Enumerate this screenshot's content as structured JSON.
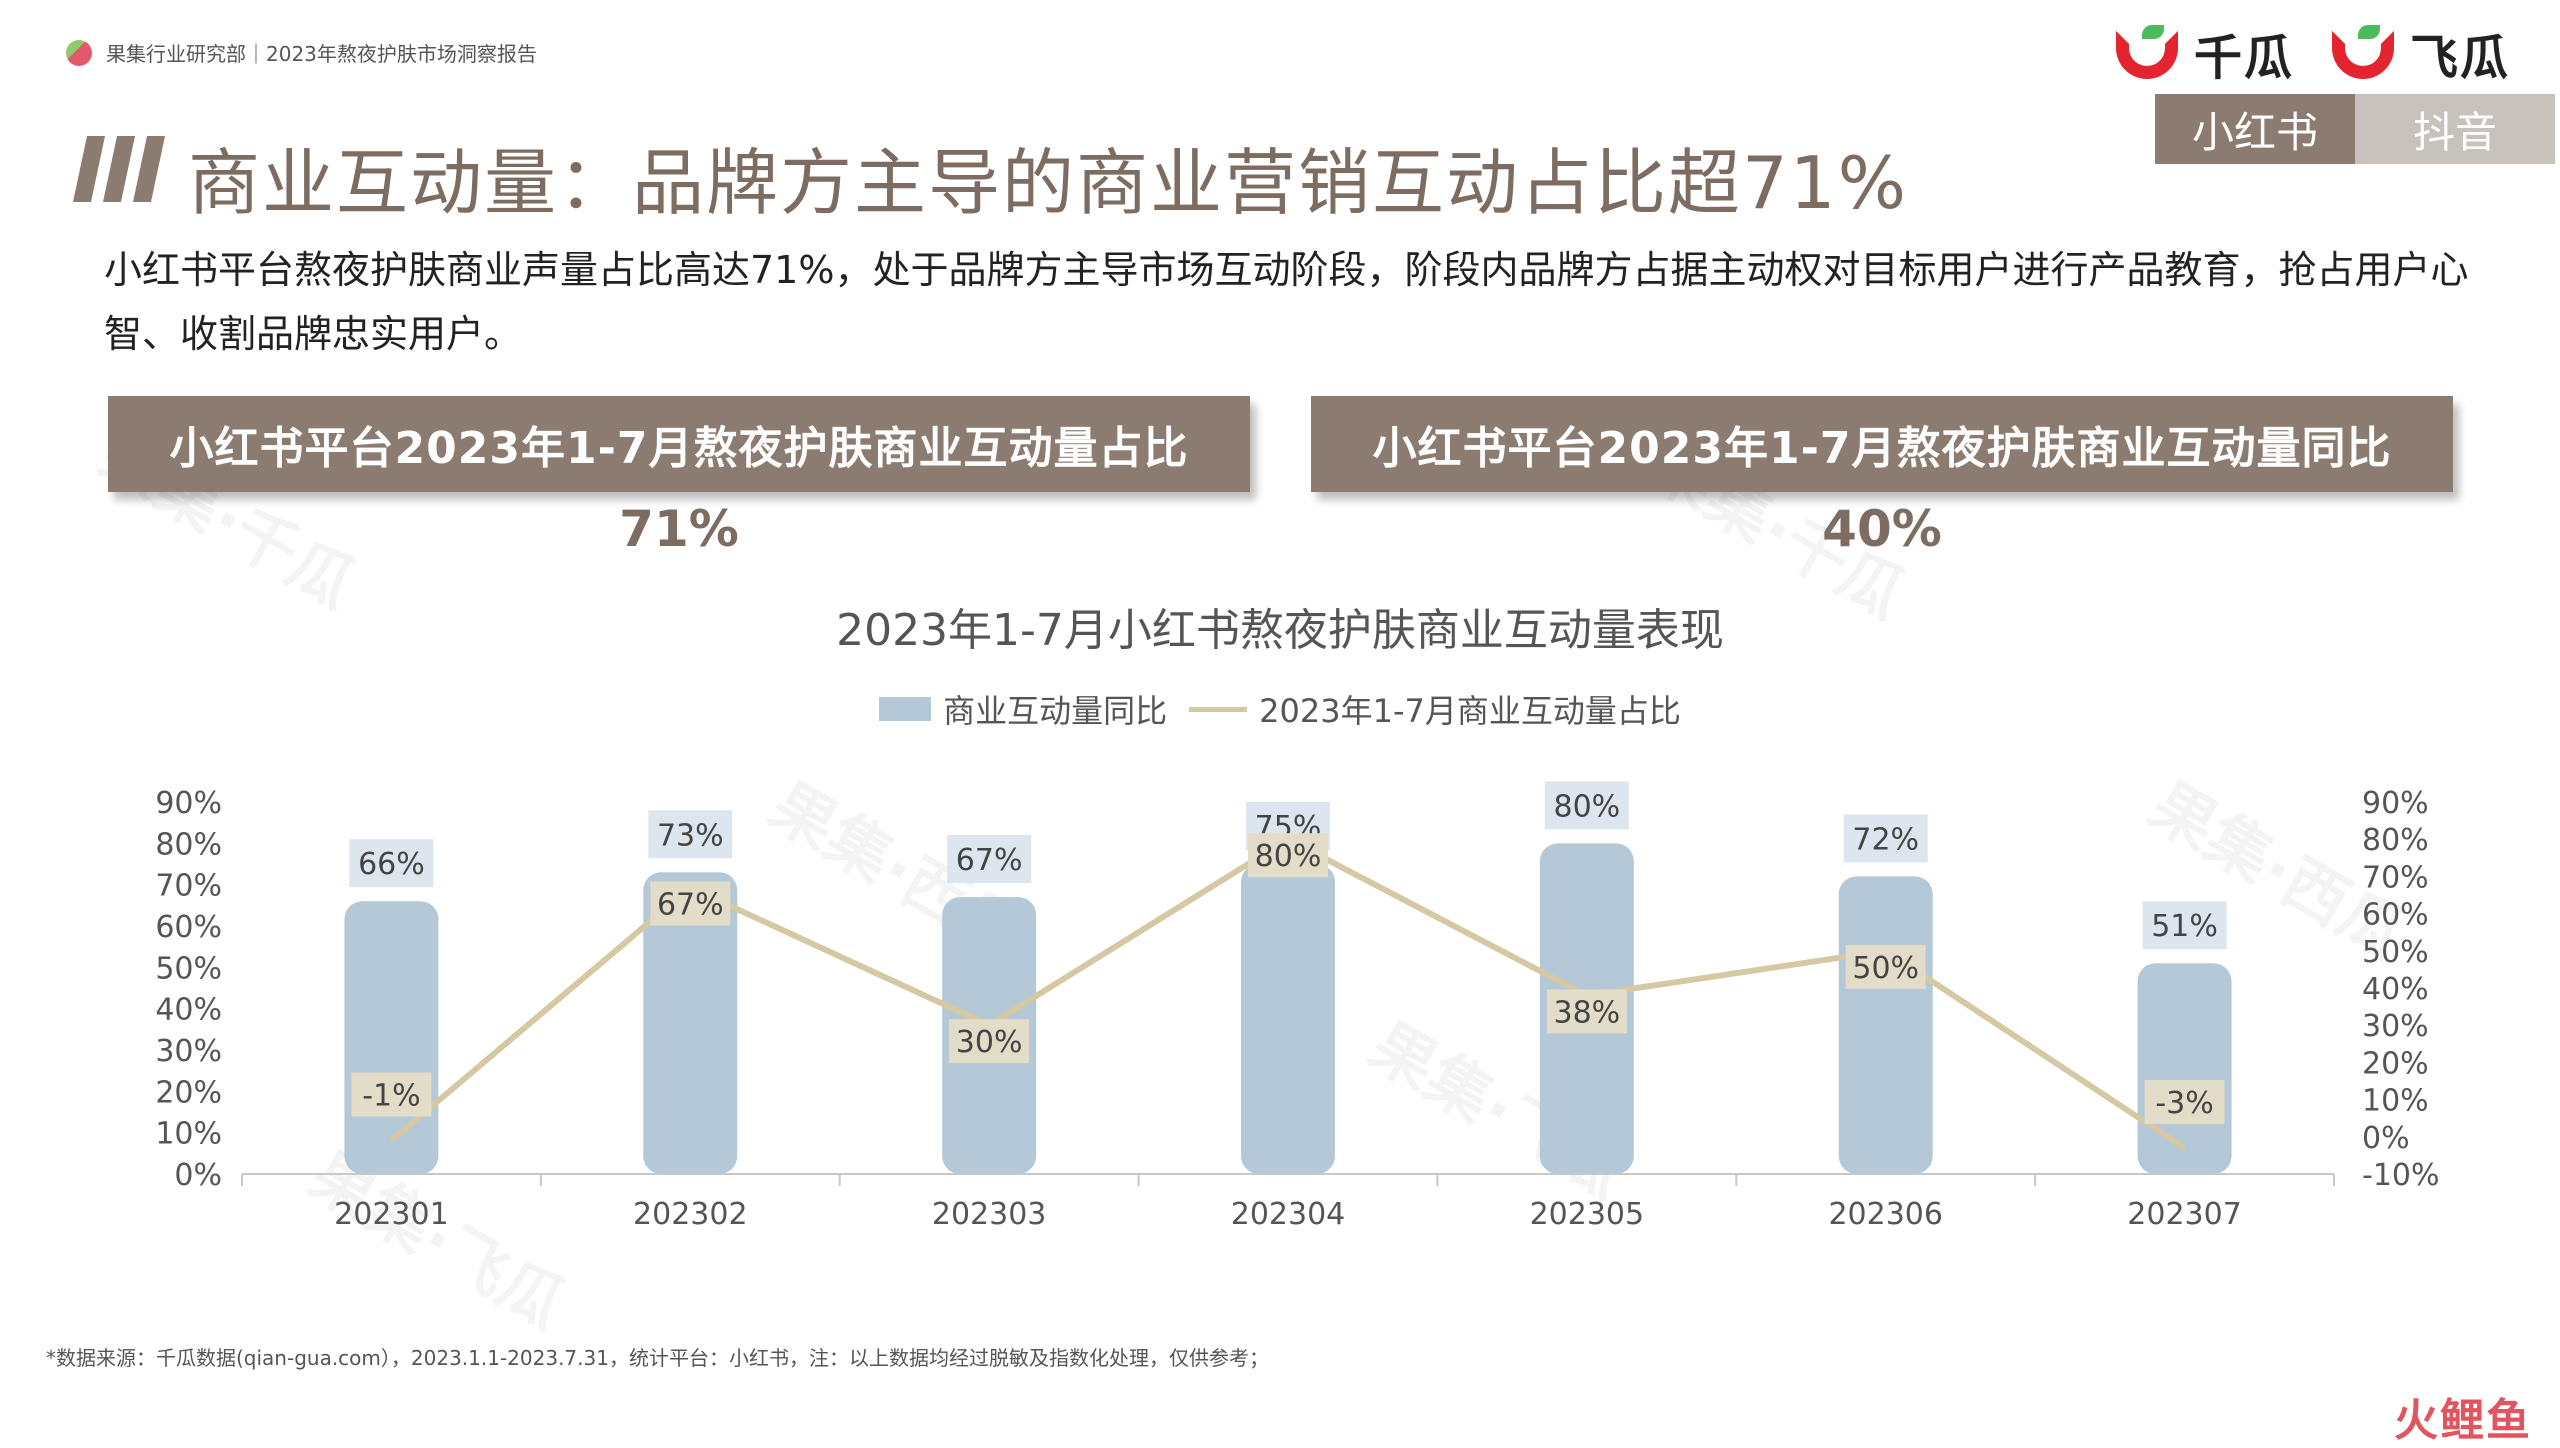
{
  "header": {
    "report_source": "果集行业研究部｜2023年熬夜护肤市场洞察报告",
    "logos": [
      "千瓜",
      "飞瓜"
    ],
    "platform_tabs": [
      {
        "label": "小红书",
        "active": true
      },
      {
        "label": "抖音",
        "active": false
      }
    ]
  },
  "page_title": "商业互动量：品牌方主导的商业营销互动占比超71%",
  "description": "小红书平台熬夜护肤商业声量占比高达71%，处于品牌方主导市场互动阶段，阶段内品牌方占据主动权对目标用户进行产品教育，抢占用户心智、收割品牌忠实用户。",
  "kpis": [
    {
      "label": "小红书平台2023年1-7月熬夜护肤商业互动量占比",
      "value": "71%"
    },
    {
      "label": "小红书平台2023年1-7月熬夜护肤商业互动量同比",
      "value": "40%"
    }
  ],
  "chart_data": {
    "type": "bar",
    "title": "2023年1-7月小红书熬夜护肤商业互动量表现",
    "categories": [
      "202301",
      "202302",
      "202303",
      "202304",
      "202305",
      "202306",
      "202307"
    ],
    "series": [
      {
        "name": "商业互动量同比",
        "type": "bar",
        "axis": "left",
        "values": [
          66,
          73,
          67,
          75,
          80,
          72,
          51
        ]
      },
      {
        "name": "2023年1-7月商业互动量占比",
        "type": "line",
        "axis": "right",
        "values": [
          -1,
          67,
          30,
          80,
          38,
          50,
          -3
        ]
      }
    ],
    "y_left": {
      "ylim": [
        0,
        90
      ],
      "ticks": [
        "0%",
        "10%",
        "20%",
        "30%",
        "40%",
        "50%",
        "60%",
        "70%",
        "80%",
        "90%"
      ]
    },
    "y_right": {
      "ylim": [
        -10,
        90
      ],
      "ticks": [
        "-10%",
        "0%",
        "10%",
        "20%",
        "30%",
        "40%",
        "50%",
        "60%",
        "70%",
        "80%",
        "90%"
      ]
    },
    "bar_labels": [
      "66%",
      "73%",
      "67%",
      "75%",
      "80%",
      "72%",
      "51%"
    ],
    "line_labels": [
      "-1%",
      "67%",
      "30%",
      "80%",
      "38%",
      "50%",
      "-3%"
    ],
    "colors": {
      "bar": "#b4c8d8",
      "line": "#d5c9a4",
      "bar_label_bg": "#dde6ee",
      "line_label_bg": "#e2dcc9"
    },
    "legend_position": "top",
    "grid": false
  },
  "footer": "*数据来源：千瓜数据(qian-gua.com），2023.1.1-2023.7.31，统计平台：小红书，注：以上数据均经过脱敏及指数化处理，仅供参考；",
  "brand": "火鲤鱼",
  "watermarks": [
    "果集·千瓜",
    "果集·西瓜",
    "果集·飞瓜"
  ]
}
